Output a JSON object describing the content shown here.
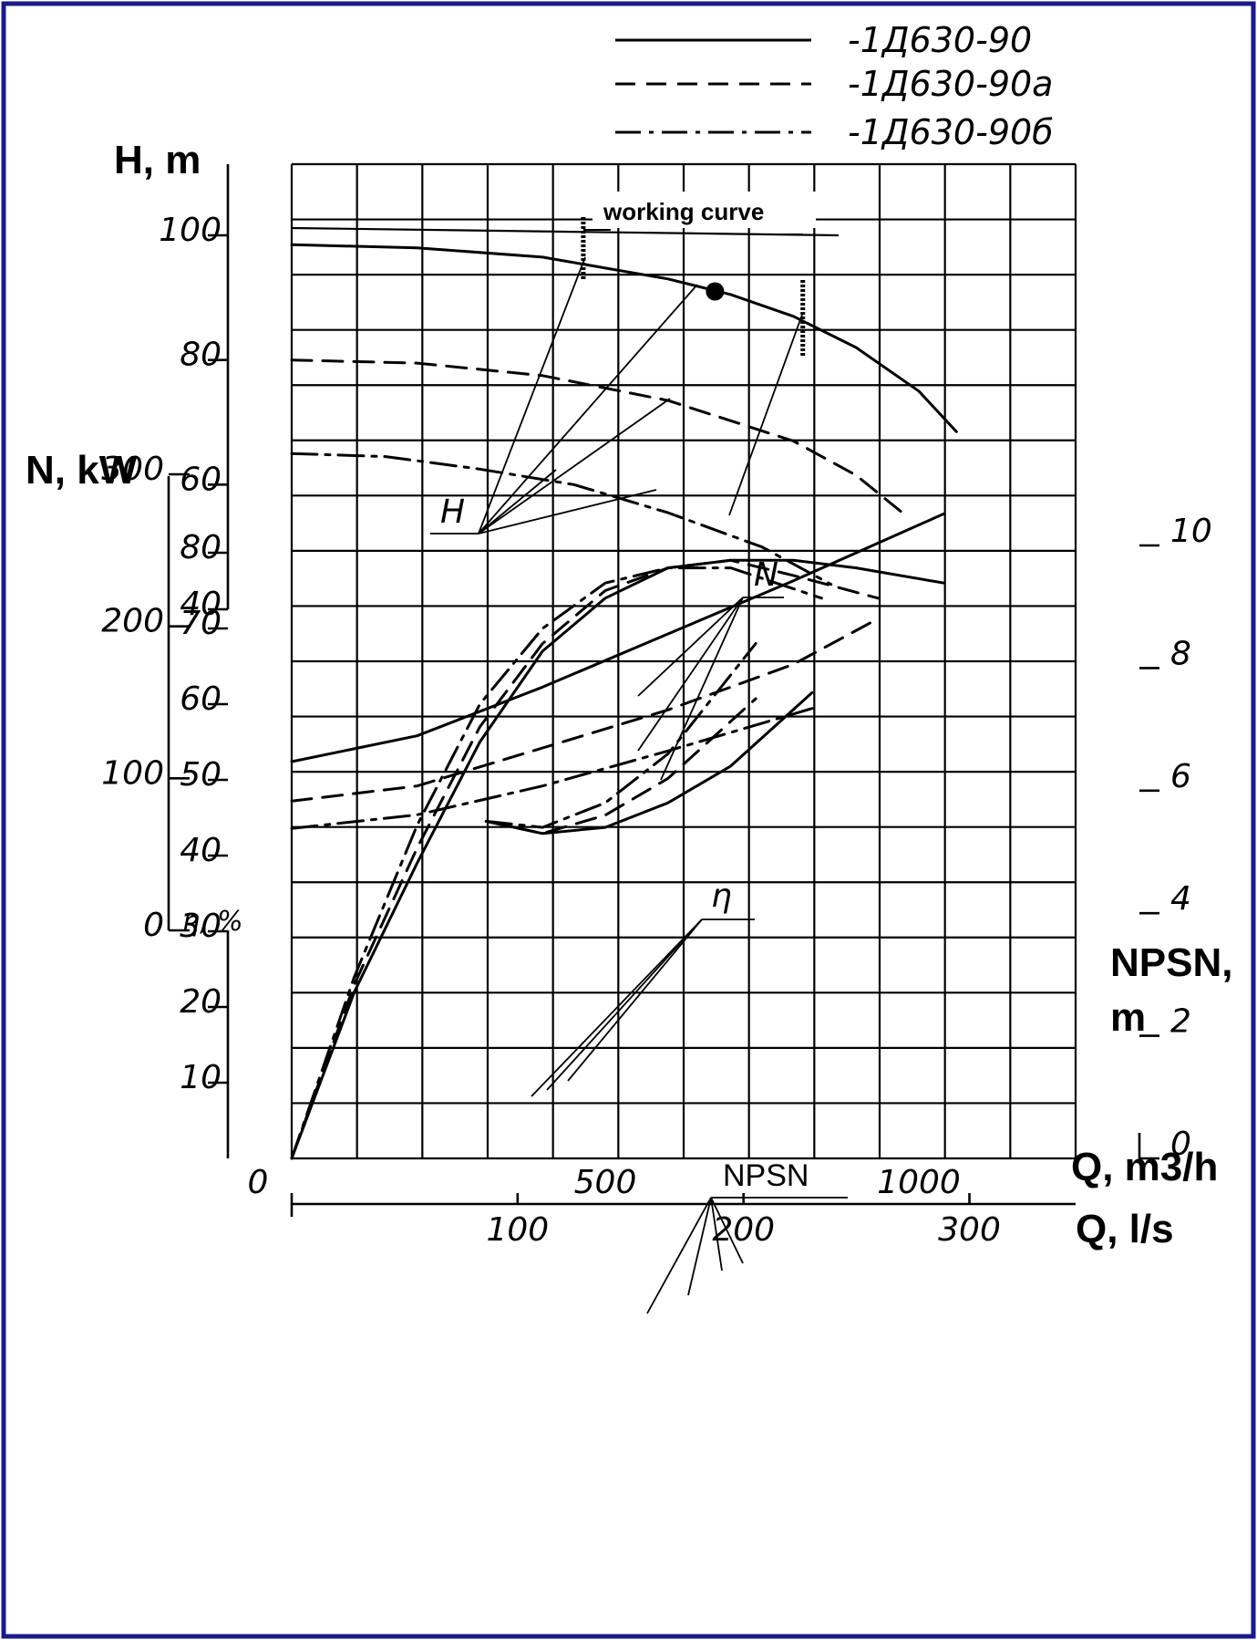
{
  "chart_data": {
    "type": "line",
    "title": "",
    "legend": {
      "placement": "top",
      "entries": [
        {
          "name": "-1Д630-90",
          "style": "solid"
        },
        {
          "name": "-1Д630-90а",
          "style": "dashed"
        },
        {
          "name": "-1Д630-90б",
          "style": "dashdot"
        }
      ]
    },
    "axes": {
      "q_m3h": {
        "label": "Q, m3/h",
        "range": [
          0,
          1250
        ],
        "ticks": [
          "0",
          "500",
          "1000"
        ]
      },
      "q_ls": {
        "label": "Q, l/s",
        "range": [
          0,
          347
        ],
        "ticks": [
          "100",
          "200",
          "300"
        ]
      },
      "head": {
        "label": "H, m",
        "range": [
          40,
          100
        ],
        "ticks": [
          "100",
          "80",
          "60",
          "40"
        ]
      },
      "power": {
        "label": "N, kW",
        "range": [
          0,
          300
        ],
        "ticks": [
          "300",
          "200",
          "100",
          "0"
        ]
      },
      "efficiency": {
        "label": "η, %",
        "range": [
          0,
          90
        ],
        "ticks": [
          "80",
          "70",
          "60",
          "50",
          "40",
          "30",
          "20",
          "10"
        ]
      },
      "npsh": {
        "label": "NPSN, m",
        "range": [
          0,
          11
        ],
        "ticks": [
          "10",
          "8",
          "6",
          "4",
          "2",
          "0"
        ]
      }
    },
    "grid": true,
    "annotations": {
      "working_curve": "working curve",
      "working_range_m3h": [
        465,
        815
      ],
      "best_efficiency_point": {
        "q_m3h": 675,
        "h_m": 91
      },
      "labels": {
        "H": "H",
        "N": "N",
        "eta": "η",
        "NPSN": "NPSN"
      }
    },
    "series": [
      {
        "group": "head",
        "style": "solid",
        "x": [
          0,
          200,
          400,
          600,
          700,
          800,
          900,
          1000,
          1060
        ],
        "y": [
          98.5,
          98,
          96.5,
          93,
          90.5,
          87,
          82,
          75,
          68.5
        ]
      },
      {
        "group": "head",
        "style": "dashed",
        "x": [
          0,
          200,
          400,
          600,
          800,
          900,
          980
        ],
        "y": [
          80,
          79.5,
          77.5,
          73.5,
          67,
          61.5,
          55
        ]
      },
      {
        "group": "head",
        "style": "dashdot",
        "x": [
          0,
          150,
          300,
          450,
          600,
          750,
          860
        ],
        "y": [
          65,
          64.5,
          62.5,
          60,
          55.5,
          50,
          44
        ]
      },
      {
        "group": "power",
        "style": "solid",
        "x": [
          0,
          200,
          400,
          600,
          800,
          1040
        ],
        "y": [
          111,
          128,
          160,
          195,
          230,
          274
        ]
      },
      {
        "group": "power",
        "style": "dashed",
        "x": [
          0,
          200,
          400,
          600,
          800,
          935
        ],
        "y": [
          85,
          95,
          120,
          145,
          175,
          205
        ]
      },
      {
        "group": "power",
        "style": "dashdot",
        "x": [
          0,
          200,
          400,
          600,
          830
        ],
        "y": [
          67,
          76,
          95,
          118,
          146
        ]
      },
      {
        "group": "efficiency",
        "style": "solid",
        "x": [
          0,
          100,
          200,
          300,
          400,
          500,
          600,
          700,
          800,
          900,
          1040
        ],
        "y": [
          0,
          22,
          39,
          55,
          67,
          74,
          78,
          79,
          79,
          78,
          76
        ]
      },
      {
        "group": "efficiency",
        "style": "dashed",
        "x": [
          0,
          100,
          200,
          300,
          400,
          500,
          600,
          700,
          800,
          935
        ],
        "y": [
          0,
          23,
          41,
          57,
          68,
          75,
          78,
          79,
          77,
          74
        ]
      },
      {
        "group": "efficiency",
        "style": "dashdot",
        "x": [
          0,
          100,
          200,
          300,
          400,
          500,
          600,
          700,
          845
        ],
        "y": [
          0,
          24,
          44,
          60,
          70,
          76,
          78,
          78,
          74
        ]
      },
      {
        "group": "npsh",
        "style": "solid",
        "x": [
          310,
          400,
          500,
          600,
          700,
          830
        ],
        "y": [
          5.5,
          5.3,
          5.4,
          5.8,
          6.4,
          7.6
        ]
      },
      {
        "group": "npsh",
        "style": "dashed",
        "x": [
          310,
          400,
          500,
          600,
          740
        ],
        "y": [
          5.5,
          5.3,
          5.6,
          6.2,
          7.5
        ]
      },
      {
        "group": "npsh",
        "style": "dashdot",
        "x": [
          310,
          400,
          500,
          600,
          740
        ],
        "y": [
          5.5,
          5.4,
          5.8,
          6.6,
          8.4
        ]
      }
    ]
  }
}
